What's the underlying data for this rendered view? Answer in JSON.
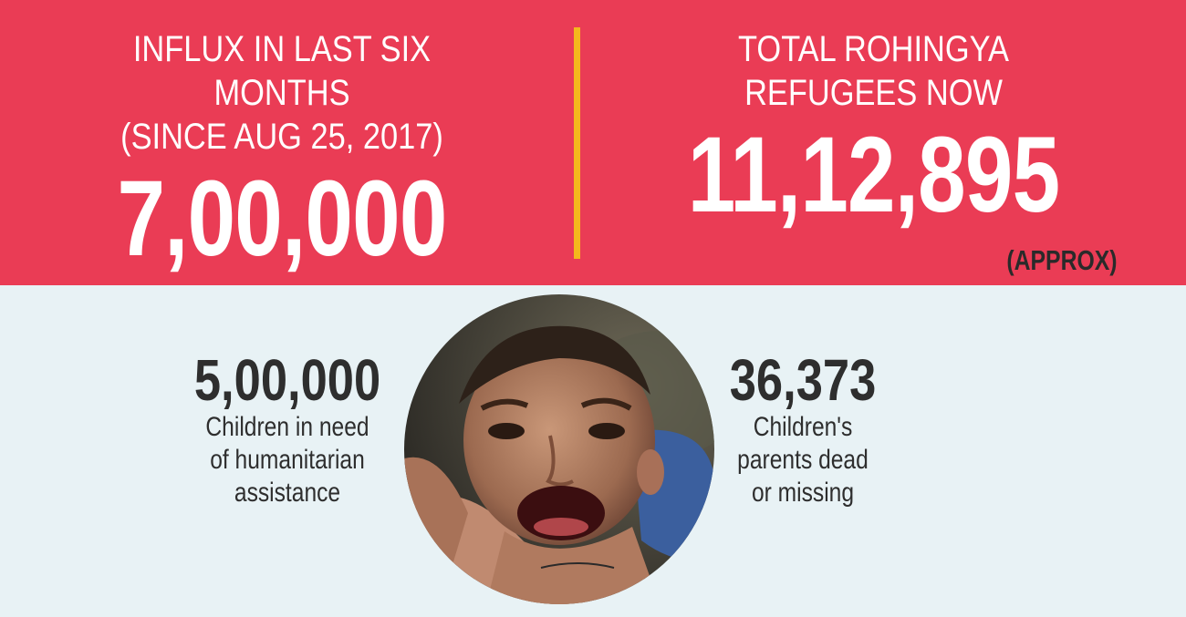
{
  "header": {
    "left": {
      "heading_line1": "INFLUX IN LAST SIX MONTHS",
      "heading_line2": "(SINCE AUG 25, 2017)",
      "value": "7,00,000"
    },
    "right": {
      "heading_line1": "TOTAL ROHINGYA",
      "heading_line2": "REFUGEES NOW",
      "value": "11,12,895",
      "note": "(APPROX)"
    }
  },
  "stats": {
    "left": {
      "value": "5,00,000",
      "desc_line1": "Children in need",
      "desc_line2": "of humanitarian",
      "desc_line3": "assistance"
    },
    "right": {
      "value": "36,373",
      "desc_line1": "Children's",
      "desc_line2": "parents dead",
      "desc_line3": "or missing"
    }
  },
  "colors": {
    "banner": "#ea3c55",
    "divider": "#f4b81d",
    "background": "#e8f2f5",
    "text_dark": "#2e2e2e"
  }
}
